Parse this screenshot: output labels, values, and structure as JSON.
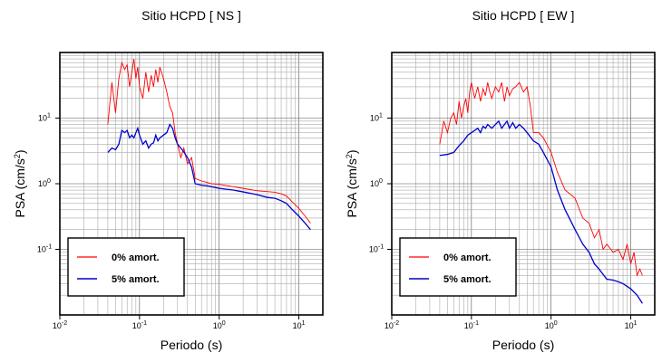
{
  "chart_data": [
    {
      "type": "line",
      "title": "Sitio HCPD [ NS ]",
      "xlabel": "Periodo (s)",
      "ylabel": "PSA (cm/s²)",
      "xscale": "log",
      "yscale": "log",
      "xlim": [
        0.01,
        20
      ],
      "ylim": [
        0.01,
        100
      ],
      "grid": true,
      "legend_position": "bottom-left",
      "xticks": [
        {
          "value": 0.01,
          "base": "10",
          "exp": "-2"
        },
        {
          "value": 0.1,
          "base": "10",
          "exp": "-1"
        },
        {
          "value": 1,
          "base": "10",
          "exp": "0"
        },
        {
          "value": 10,
          "base": "10",
          "exp": "1"
        }
      ],
      "yticks": [
        {
          "value": 0.1,
          "base": "10",
          "exp": "-1"
        },
        {
          "value": 1,
          "base": "10",
          "exp": "0"
        },
        {
          "value": 10,
          "base": "10",
          "exp": "1"
        }
      ],
      "series": [
        {
          "name": "0% amort.",
          "color": "#ff0000",
          "x": [
            0.04,
            0.045,
            0.05,
            0.055,
            0.06,
            0.065,
            0.07,
            0.075,
            0.08,
            0.085,
            0.09,
            0.095,
            0.1,
            0.11,
            0.12,
            0.13,
            0.14,
            0.15,
            0.16,
            0.17,
            0.18,
            0.2,
            0.22,
            0.24,
            0.26,
            0.28,
            0.3,
            0.33,
            0.36,
            0.4,
            0.45,
            0.5,
            0.6,
            0.7,
            0.8,
            1,
            1.5,
            2,
            3,
            4,
            5,
            6,
            7,
            8,
            10,
            12,
            14
          ],
          "y": [
            8,
            35,
            12,
            40,
            70,
            55,
            65,
            30,
            50,
            80,
            40,
            60,
            30,
            20,
            50,
            25,
            45,
            30,
            55,
            35,
            60,
            40,
            25,
            15,
            12,
            6,
            4,
            2.5,
            3.5,
            2,
            2.5,
            1.2,
            1.1,
            1.05,
            1,
            0.98,
            0.9,
            0.85,
            0.78,
            0.76,
            0.74,
            0.7,
            0.65,
            0.55,
            0.42,
            0.32,
            0.25
          ]
        },
        {
          "name": "5% amort.",
          "color": "#0000cc",
          "x": [
            0.04,
            0.045,
            0.05,
            0.055,
            0.06,
            0.065,
            0.07,
            0.075,
            0.08,
            0.085,
            0.09,
            0.095,
            0.1,
            0.11,
            0.12,
            0.13,
            0.14,
            0.15,
            0.16,
            0.17,
            0.18,
            0.2,
            0.22,
            0.24,
            0.26,
            0.28,
            0.3,
            0.35,
            0.4,
            0.45,
            0.5,
            0.6,
            0.7,
            0.8,
            1,
            1.5,
            2,
            3,
            4,
            5,
            6,
            7,
            8,
            10,
            12,
            14
          ],
          "y": [
            3,
            3.5,
            3.3,
            4,
            6.5,
            6,
            6.5,
            5,
            5.5,
            5,
            6,
            7,
            5.5,
            4,
            4.5,
            3.5,
            4,
            4.2,
            5.5,
            4.5,
            5,
            5.5,
            6,
            8,
            7,
            5,
            4,
            3.2,
            2.5,
            1.8,
            1,
            0.95,
            0.93,
            0.9,
            0.85,
            0.8,
            0.75,
            0.68,
            0.62,
            0.6,
            0.55,
            0.5,
            0.42,
            0.32,
            0.25,
            0.2
          ]
        }
      ]
    },
    {
      "type": "line",
      "title": "Sitio HCPD [ EW ]",
      "xlabel": "Periodo (s)",
      "ylabel": "PSA (cm/s²)",
      "xscale": "log",
      "yscale": "log",
      "xlim": [
        0.01,
        20
      ],
      "ylim": [
        0.01,
        100
      ],
      "grid": true,
      "legend_position": "bottom-left",
      "xticks": [
        {
          "value": 0.01,
          "base": "10",
          "exp": "-2"
        },
        {
          "value": 0.1,
          "base": "10",
          "exp": "-1"
        },
        {
          "value": 1,
          "base": "10",
          "exp": "0"
        },
        {
          "value": 10,
          "base": "10",
          "exp": "1"
        }
      ],
      "yticks": [
        {
          "value": 0.1,
          "base": "10",
          "exp": "-1"
        },
        {
          "value": 1,
          "base": "10",
          "exp": "0"
        },
        {
          "value": 10,
          "base": "10",
          "exp": "1"
        }
      ],
      "series": [
        {
          "name": "0% amort.",
          "color": "#ff0000",
          "x": [
            0.04,
            0.045,
            0.05,
            0.055,
            0.06,
            0.065,
            0.07,
            0.075,
            0.08,
            0.085,
            0.09,
            0.095,
            0.1,
            0.11,
            0.12,
            0.13,
            0.14,
            0.15,
            0.16,
            0.17,
            0.18,
            0.2,
            0.22,
            0.24,
            0.26,
            0.28,
            0.3,
            0.33,
            0.36,
            0.4,
            0.45,
            0.5,
            0.55,
            0.6,
            0.7,
            0.8,
            1,
            1.2,
            1.5,
            2,
            2.5,
            3,
            3.5,
            4,
            4.5,
            5,
            6,
            7,
            8,
            9,
            10,
            11,
            12,
            13,
            14
          ],
          "y": [
            4,
            9,
            6,
            10,
            12,
            8,
            18,
            10,
            15,
            20,
            12,
            25,
            35,
            20,
            30,
            18,
            28,
            22,
            35,
            25,
            20,
            30,
            25,
            35,
            18,
            30,
            22,
            28,
            30,
            35,
            25,
            30,
            15,
            6,
            6,
            5,
            3,
            1.5,
            0.8,
            0.6,
            0.3,
            0.25,
            0.15,
            0.2,
            0.1,
            0.12,
            0.09,
            0.1,
            0.07,
            0.12,
            0.06,
            0.09,
            0.04,
            0.05,
            0.04
          ]
        },
        {
          "name": "5% amort.",
          "color": "#0000cc",
          "x": [
            0.04,
            0.05,
            0.06,
            0.07,
            0.08,
            0.09,
            0.1,
            0.11,
            0.12,
            0.13,
            0.14,
            0.15,
            0.16,
            0.18,
            0.2,
            0.22,
            0.24,
            0.26,
            0.28,
            0.3,
            0.33,
            0.36,
            0.4,
            0.45,
            0.5,
            0.6,
            0.7,
            0.8,
            1,
            1.2,
            1.5,
            2,
            2.5,
            3,
            3.5,
            4,
            5,
            6,
            7,
            8,
            10,
            12,
            14
          ],
          "y": [
            2.7,
            2.8,
            3,
            3.8,
            4.5,
            5.5,
            6,
            6.5,
            7,
            6,
            7.5,
            7,
            8,
            7,
            8,
            9,
            7,
            8,
            9,
            7,
            8.5,
            7,
            8,
            7,
            6,
            4.5,
            4,
            3,
            1.8,
            0.8,
            0.4,
            0.2,
            0.12,
            0.09,
            0.06,
            0.05,
            0.035,
            0.034,
            0.032,
            0.03,
            0.025,
            0.02,
            0.015
          ]
        }
      ]
    }
  ]
}
